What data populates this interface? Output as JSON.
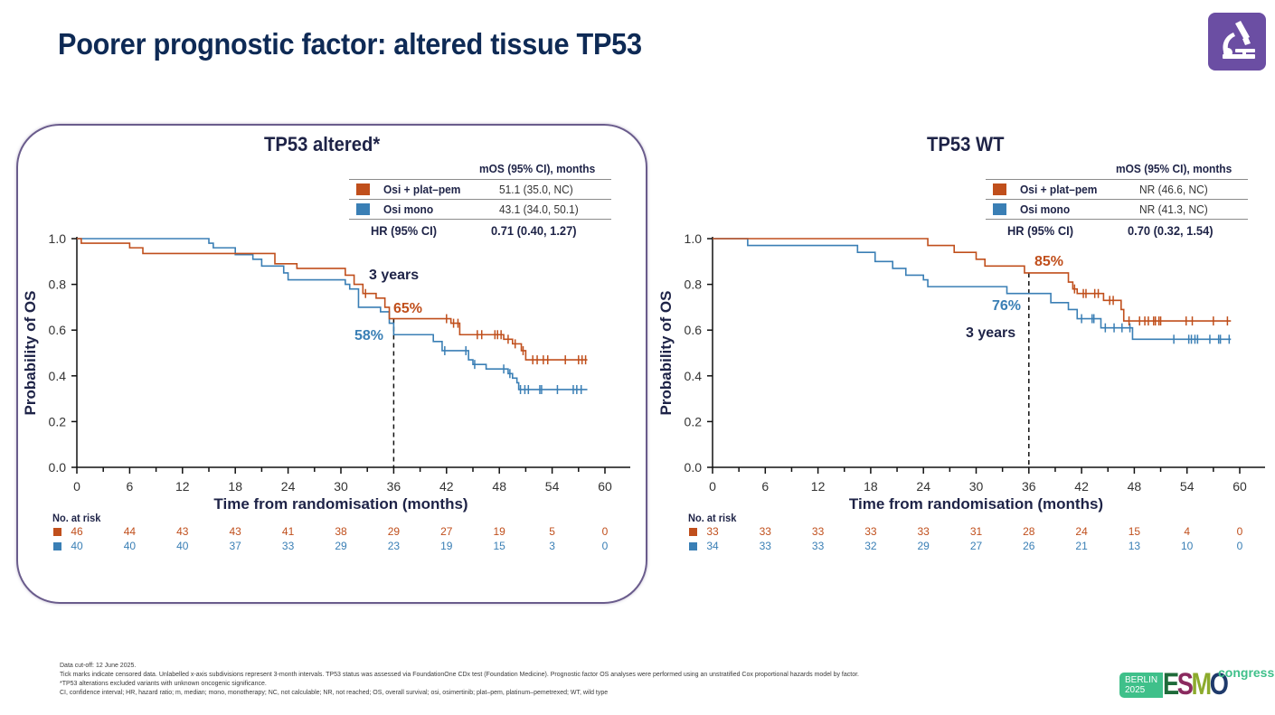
{
  "slide": {
    "title": "Poorer prognostic factor: altered tissue TP53",
    "logo_icon": "microscope-icon"
  },
  "colors": {
    "combo": "#c04f1c",
    "mono": "#3a7fb5",
    "title": "#0e2a55",
    "text": "#1e2347",
    "frame": "#6a5c8c",
    "esmo_green": "#3fc08a"
  },
  "panels": [
    {
      "title": "TP53 altered*",
      "legend": {
        "header": "mOS (95% CI), months",
        "rows": [
          {
            "label": "Osi + plat–pem",
            "value": "51.1 (35.0, NC)",
            "color": "#c04f1c"
          },
          {
            "label": "Osi mono",
            "value": "43.1 (34.0, 50.1)",
            "color": "#3a7fb5"
          }
        ],
        "hr_label": "HR (95% CI)",
        "hr_value": "0.71 (0.40, 1.27)"
      },
      "annotations": {
        "timepoint": "3 years",
        "combo_pct": "65%",
        "mono_pct": "58%"
      },
      "risk_table": {
        "header": "No. at risk",
        "combo": [
          "46",
          "44",
          "43",
          "43",
          "41",
          "38",
          "29",
          "27",
          "19",
          "5",
          "0"
        ],
        "mono": [
          "40",
          "40",
          "40",
          "37",
          "33",
          "29",
          "23",
          "19",
          "15",
          "3",
          "0"
        ]
      }
    },
    {
      "title": "TP53 WT",
      "legend": {
        "header": "mOS (95% CI), months",
        "rows": [
          {
            "label": "Osi + plat–pem",
            "value": "NR (46.6, NC)",
            "color": "#c04f1c"
          },
          {
            "label": "Osi mono",
            "value": "NR (41.3, NC)",
            "color": "#3a7fb5"
          }
        ],
        "hr_label": "HR (95% CI)",
        "hr_value": "0.70 (0.32, 1.54)"
      },
      "annotations": {
        "timepoint": "3 years",
        "combo_pct": "85%",
        "mono_pct": "76%"
      },
      "risk_table": {
        "header": "No. at risk",
        "combo": [
          "33",
          "33",
          "33",
          "33",
          "33",
          "31",
          "28",
          "24",
          "15",
          "4",
          "0"
        ],
        "mono": [
          "34",
          "33",
          "33",
          "32",
          "29",
          "27",
          "26",
          "21",
          "13",
          "10",
          "0"
        ]
      }
    }
  ],
  "chart_data": [
    {
      "type": "line",
      "title": "TP53 altered*",
      "xlabel": "Time from randomisation (months)",
      "ylabel": "Probability of OS",
      "xlim": [
        0,
        60
      ],
      "ylim": [
        0,
        1.0
      ],
      "xticks": [
        0,
        6,
        12,
        18,
        24,
        30,
        36,
        42,
        48,
        54,
        60
      ],
      "xminor_step": 3,
      "yticks": [
        0.0,
        0.2,
        0.4,
        0.6,
        0.8,
        1.0
      ],
      "ytick_labels": [
        "0.0",
        "0.2",
        "0.4",
        "0.6",
        "0.8",
        "1.0"
      ],
      "grid": false,
      "reference_line_x": 36,
      "series": [
        {
          "name": "Osi + plat–pem",
          "step": true,
          "x": [
            0,
            0.5,
            6,
            7.5,
            22.5,
            25,
            30.5,
            31.5,
            32.5,
            34,
            35,
            35.5,
            42.5,
            43.5,
            48.5,
            49.5,
            50.5,
            51,
            58
          ],
          "y": [
            1.0,
            0.98,
            0.96,
            0.935,
            0.89,
            0.87,
            0.84,
            0.8,
            0.76,
            0.74,
            0.7,
            0.65,
            0.63,
            0.58,
            0.56,
            0.54,
            0.51,
            0.47,
            0.47
          ],
          "censored_x": [
            32.8,
            42,
            42.8,
            43.3,
            45.5,
            46,
            47.5,
            47.8,
            48.2,
            49,
            49.8,
            50.7,
            51.8,
            52.3,
            53,
            53.5,
            55.5,
            57,
            57.4,
            57.8
          ],
          "label_at_36": "65%"
        },
        {
          "name": "Osi mono",
          "step": true,
          "x": [
            0,
            15,
            15.5,
            18,
            20,
            21,
            23.5,
            24,
            30.5,
            31,
            32,
            34.5,
            35.5,
            36,
            40.5,
            41.5,
            44.5,
            45,
            46.5,
            49,
            49.5,
            50,
            50.2,
            58
          ],
          "y": [
            1.0,
            0.98,
            0.96,
            0.93,
            0.91,
            0.88,
            0.85,
            0.82,
            0.8,
            0.78,
            0.7,
            0.68,
            0.63,
            0.58,
            0.55,
            0.51,
            0.47,
            0.45,
            0.43,
            0.41,
            0.39,
            0.37,
            0.34,
            0.34
          ],
          "censored_x": [
            41.8,
            44.2,
            45.2,
            48.5,
            49.2,
            50.4,
            50.9,
            51.3,
            52.6,
            52.8,
            54.6,
            56.4,
            56.8,
            57.3
          ],
          "label_at_36": "58%"
        }
      ],
      "risk_table": {
        "times": [
          0,
          6,
          12,
          18,
          24,
          30,
          36,
          42,
          48,
          54,
          60
        ],
        "Osi + plat–pem": [
          46,
          44,
          43,
          43,
          41,
          38,
          29,
          27,
          19,
          5,
          0
        ],
        "Osi mono": [
          40,
          40,
          40,
          37,
          33,
          29,
          23,
          19,
          15,
          3,
          0
        ]
      },
      "legend": "top-right"
    },
    {
      "type": "line",
      "title": "TP53 WT",
      "xlabel": "Time from randomisation (months)",
      "ylabel": "Probability of OS",
      "xlim": [
        0,
        60
      ],
      "ylim": [
        0,
        1.0
      ],
      "xticks": [
        0,
        6,
        12,
        18,
        24,
        30,
        36,
        42,
        48,
        54,
        60
      ],
      "xminor_step": 3,
      "yticks": [
        0.0,
        0.2,
        0.4,
        0.6,
        0.8,
        1.0
      ],
      "ytick_labels": [
        "0.0",
        "0.2",
        "0.4",
        "0.6",
        "0.8",
        "1.0"
      ],
      "grid": false,
      "reference_line_x": 36,
      "series": [
        {
          "name": "Osi + plat–pem",
          "step": true,
          "x": [
            0,
            24.5,
            27.5,
            30,
            31,
            35.5,
            40.5,
            41,
            41.5,
            44.5,
            46.5,
            46.8,
            59
          ],
          "y": [
            1.0,
            0.97,
            0.94,
            0.91,
            0.88,
            0.85,
            0.81,
            0.78,
            0.76,
            0.73,
            0.69,
            0.64,
            0.64
          ],
          "censored_x": [
            41.2,
            42.2,
            42.5,
            43.5,
            43.9,
            45.2,
            45.6,
            47.4,
            48.6,
            49.2,
            49.6,
            50.2,
            50.4,
            50.8,
            51,
            53.9,
            54.6,
            57,
            58.6
          ],
          "label_at_36": "85%"
        },
        {
          "name": "Osi mono",
          "step": true,
          "x": [
            0,
            4,
            16.5,
            18.5,
            20.5,
            22,
            24,
            24.5,
            33.5,
            38.5,
            40.5,
            41.5,
            44.2,
            47.8,
            59
          ],
          "y": [
            1.0,
            0.97,
            0.94,
            0.9,
            0.87,
            0.84,
            0.82,
            0.79,
            0.76,
            0.72,
            0.69,
            0.65,
            0.61,
            0.56,
            0.56
          ],
          "censored_x": [
            42,
            43.2,
            43.4,
            44.7,
            45.7,
            46.6,
            47.5,
            52.5,
            54.2,
            54.5,
            54.9,
            55.2,
            56.6,
            57.6,
            57.8,
            58.8
          ],
          "label_at_36": "76%"
        }
      ],
      "risk_table": {
        "times": [
          0,
          6,
          12,
          18,
          24,
          30,
          36,
          42,
          48,
          54,
          60
        ],
        "Osi + plat–pem": [
          33,
          33,
          33,
          33,
          33,
          31,
          28,
          24,
          15,
          4,
          0
        ],
        "Osi mono": [
          34,
          33,
          33,
          32,
          29,
          27,
          26,
          21,
          13,
          10,
          0
        ]
      },
      "legend": "top-right"
    }
  ],
  "footnotes": [
    "Data cut-off: 12 June 2025.",
    "Tick marks indicate censored data. Unlabelled x-axis subdivisions represent 3-month intervals. TP53 status was assessed via FoundationOne CDx test (Foundation Medicine). Prognostic factor OS analyses were performed using an unstratified Cox proportional hazards model by factor.",
    "*TP53 alterations excluded variants with unknown oncogenic significance.",
    "CI, confidence interval; HR, hazard ratio; m, median; mono, monotherapy; NC, not calculable; NR, not reached; OS, overall survival; osi, osimertinib; plat–pem, platinum–pemetrexed; WT, wild type"
  ],
  "branding": {
    "city": "BERLIN",
    "year": "2025",
    "letters": [
      "E",
      "S",
      "M",
      "O"
    ],
    "word": "congress"
  }
}
